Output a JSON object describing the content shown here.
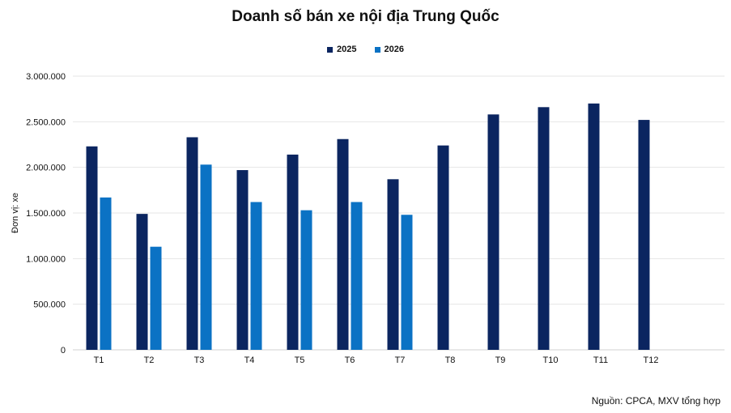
{
  "chart_data": {
    "type": "bar",
    "title": "Doanh số bán xe nội địa Trung Quốc",
    "ylabel": "Đơn vị: xe",
    "xlabel": "",
    "source": "Nguồn: CPCA, MXV tổng hợp",
    "categories": [
      "T1",
      "T2",
      "T3",
      "T4",
      "T5",
      "T6",
      "T7",
      "T8",
      "T9",
      "T10",
      "T11",
      "T12"
    ],
    "series": [
      {
        "name": "2025",
        "color": "#0b2560",
        "values": [
          2230000,
          1490000,
          2330000,
          1970000,
          2140000,
          2310000,
          1870000,
          2240000,
          2580000,
          2660000,
          2700000,
          2520000
        ]
      },
      {
        "name": "2026",
        "color": "#0b72c4",
        "values": [
          1670000,
          1130000,
          2030000,
          1620000,
          1530000,
          1620000,
          1480000,
          null,
          null,
          null,
          null,
          null
        ]
      }
    ],
    "ylim": [
      0,
      3000000
    ],
    "yticks": [
      "0",
      "500.000",
      "1.000.000",
      "1.500.000",
      "2.000.000",
      "2.500.000",
      "3.000.000"
    ],
    "grid": true,
    "legend_position": "top"
  }
}
